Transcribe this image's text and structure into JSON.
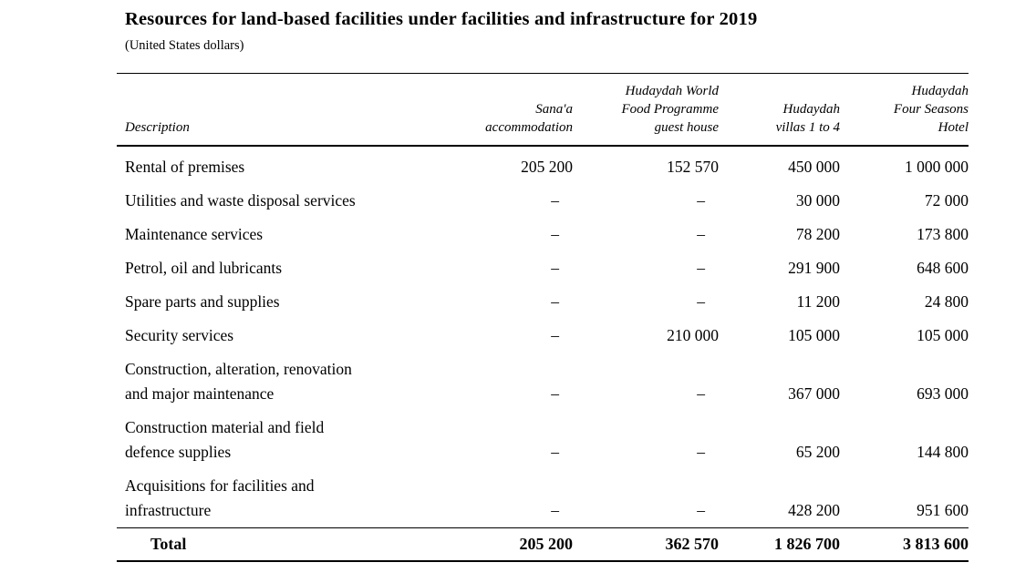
{
  "document": {
    "title": "Resources for land-based facilities under facilities and infrastructure for 2019",
    "subtitle": "(United States dollars)"
  },
  "table": {
    "columns": [
      {
        "label": "Description"
      },
      {
        "label": "Sana'a\naccommodation"
      },
      {
        "label": "Hudaydah World\nFood Programme\nguest house"
      },
      {
        "label": "Hudaydah\nvillas 1 to 4"
      },
      {
        "label": "Hudaydah\nFour Seasons\nHotel"
      }
    ],
    "rows": [
      {
        "description": "Rental of premises",
        "values": [
          "205 200",
          "152 570",
          "450 000",
          "1 000 000"
        ]
      },
      {
        "description": "Utilities and waste disposal services",
        "values": [
          "–",
          "–",
          "30 000",
          "72 000"
        ]
      },
      {
        "description": "Maintenance services",
        "values": [
          "–",
          "–",
          "78 200",
          "173 800"
        ]
      },
      {
        "description": "Petrol, oil and lubricants",
        "values": [
          "–",
          "–",
          "291 900",
          "648 600"
        ]
      },
      {
        "description": "Spare parts and supplies",
        "values": [
          "–",
          "–",
          "11 200",
          "24 800"
        ]
      },
      {
        "description": "Security services",
        "values": [
          "–",
          "210 000",
          "105 000",
          "105 000"
        ]
      },
      {
        "description": "Construction, alteration, renovation\nand major maintenance",
        "values": [
          "–",
          "–",
          "367 000",
          "693 000"
        ]
      },
      {
        "description": "Construction material and field\ndefence supplies",
        "values": [
          "–",
          "–",
          "65 200",
          "144 800"
        ]
      },
      {
        "description": "Acquisitions for facilities and\ninfrastructure",
        "values": [
          "–",
          "–",
          "428 200",
          "951 600"
        ]
      }
    ],
    "total": {
      "label": "Total",
      "values": [
        "205 200",
        "362 570",
        "1 826 700",
        "3 813 600"
      ]
    }
  }
}
